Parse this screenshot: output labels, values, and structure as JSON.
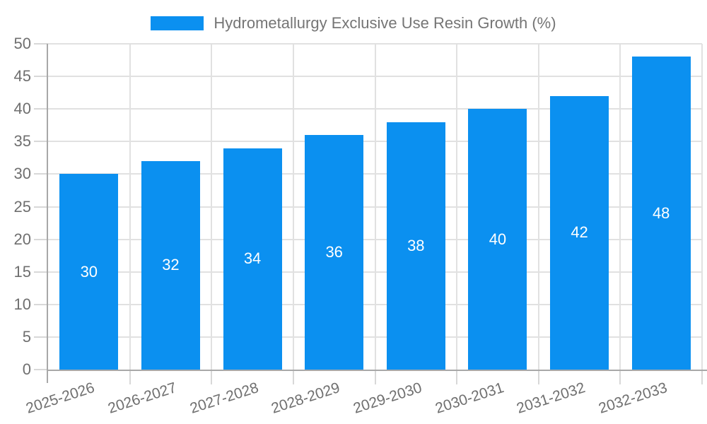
{
  "chart_data": {
    "type": "bar",
    "title": "Hydrometallurgy Exclusive Use Resin Growth (%)",
    "categories": [
      "2025-2026",
      "2026-2027",
      "2027-2028",
      "2028-2029",
      "2029-2030",
      "2030-2031",
      "2031-2032",
      "2032-2033"
    ],
    "values": [
      30,
      32,
      34,
      36,
      38,
      40,
      42,
      48
    ],
    "xlabel": "",
    "ylabel": "",
    "ylim": [
      0,
      50
    ],
    "ytick_step": 5,
    "y_tick_labels": [
      "0",
      "5",
      "10",
      "15",
      "20",
      "25",
      "30",
      "35",
      "40",
      "45",
      "50"
    ],
    "grid": true,
    "legend_position": "top",
    "value_label_position": "inside-center",
    "colors": {
      "bar": "#0b90f0",
      "value_label": "#ffffff",
      "axis_text": "#6f6f6f",
      "legend_text": "#757575",
      "gridline": "#e1e1e1",
      "tick": "#d8d8d8",
      "axis_line": "#a8a8a8",
      "background": "#ffffff"
    }
  }
}
